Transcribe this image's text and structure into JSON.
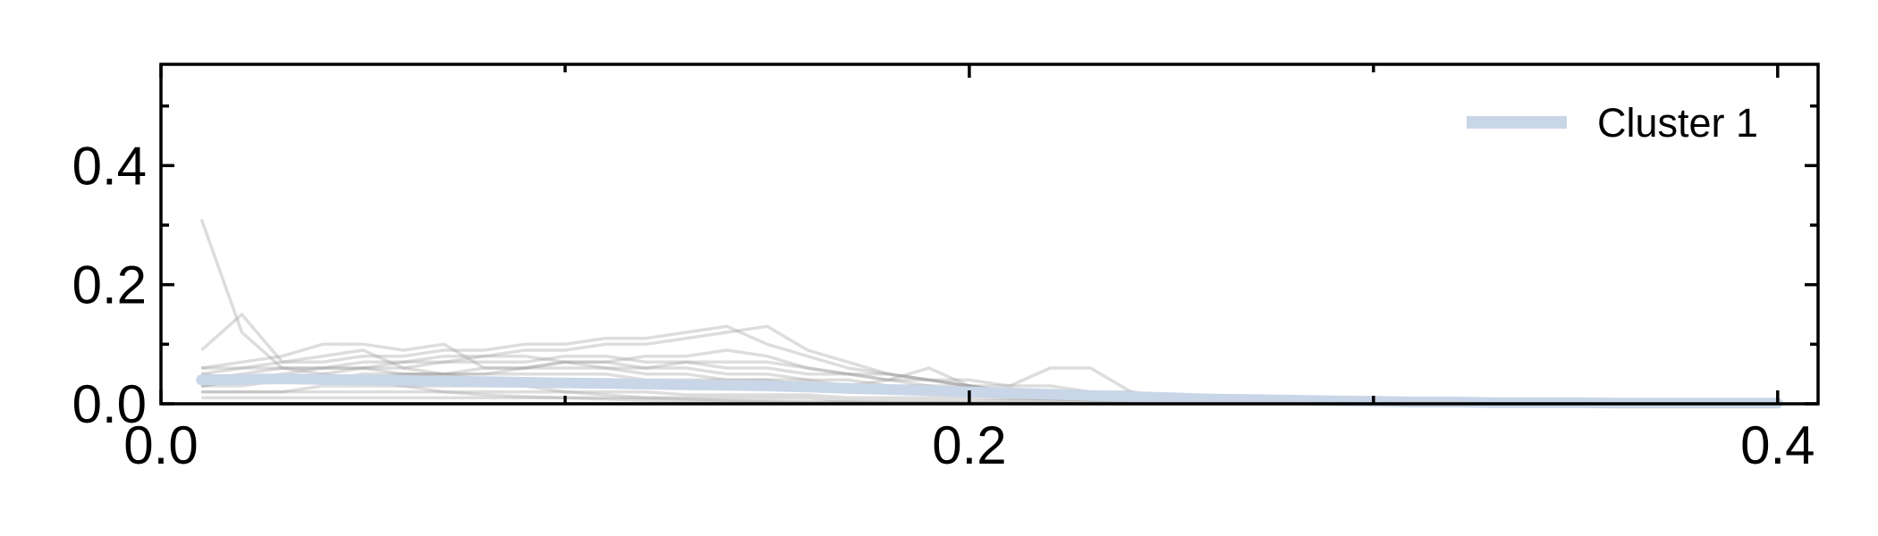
{
  "chart_data": {
    "type": "line",
    "title": "",
    "xlabel": "",
    "ylabel": "",
    "xlim": [
      0.0,
      0.41
    ],
    "ylim": [
      0.0,
      0.57
    ],
    "x_ticks": [
      0.0,
      0.2,
      0.4
    ],
    "x_tick_labels": [
      "0.0",
      "0.2",
      "0.4"
    ],
    "x_minor_ticks": [
      0.1,
      0.3
    ],
    "y_ticks": [
      0.0,
      0.2,
      0.4
    ],
    "y_tick_labels": [
      "0.0",
      "0.2",
      "0.4"
    ],
    "y_minor_ticks": [
      0.1,
      0.3,
      0.5
    ],
    "grid": false,
    "legend_position": "top-right",
    "colors": {
      "mean_line": "#c9d6e8",
      "member_lines": "#9e9e9e"
    },
    "x": [
      0.01,
      0.02,
      0.03,
      0.04,
      0.05,
      0.06,
      0.07,
      0.08,
      0.09,
      0.1,
      0.11,
      0.12,
      0.13,
      0.14,
      0.15,
      0.16,
      0.17,
      0.18,
      0.19,
      0.2,
      0.21,
      0.22,
      0.23,
      0.24,
      0.25,
      0.26,
      0.27,
      0.28,
      0.29,
      0.3,
      0.31,
      0.32,
      0.33,
      0.34,
      0.35,
      0.36,
      0.37,
      0.38,
      0.39,
      0.4
    ],
    "series": [
      {
        "name": "Cluster 1",
        "role": "mean",
        "values": [
          0.04,
          0.041,
          0.042,
          0.041,
          0.04,
          0.039,
          0.038,
          0.037,
          0.036,
          0.035,
          0.034,
          0.033,
          0.032,
          0.031,
          0.03,
          0.028,
          0.026,
          0.024,
          0.022,
          0.02,
          0.018,
          0.016,
          0.014,
          0.012,
          0.01,
          0.008,
          0.007,
          0.006,
          0.005,
          0.004,
          0.003,
          0.003,
          0.002,
          0.002,
          0.002,
          0.001,
          0.001,
          0.001,
          0.001,
          0.001
        ]
      },
      {
        "role": "member",
        "values": [
          0.31,
          0.12,
          0.06,
          0.05,
          0.04,
          0.03,
          0.02,
          0.015,
          0.012,
          0.01,
          0.008,
          0.006,
          0.005,
          0.004,
          0.003,
          0.002,
          0.002,
          0.001,
          0.001,
          0.001,
          0.001,
          0.001,
          0.0,
          0.0,
          0.0,
          0.0,
          0.0,
          0.0,
          0.0,
          0.0,
          0.0,
          0.0,
          0.0,
          0.0,
          0.0,
          0.0,
          0.0,
          0.0,
          0.0,
          0.0
        ]
      },
      {
        "role": "member",
        "values": [
          0.09,
          0.15,
          0.07,
          0.08,
          0.09,
          0.06,
          0.05,
          0.04,
          0.03,
          0.02,
          0.015,
          0.01,
          0.008,
          0.006,
          0.005,
          0.004,
          0.003,
          0.002,
          0.002,
          0.001,
          0.001,
          0.001,
          0.0,
          0.0,
          0.0,
          0.0,
          0.0,
          0.0,
          0.0,
          0.0,
          0.0,
          0.0,
          0.0,
          0.0,
          0.0,
          0.0,
          0.0,
          0.0,
          0.0,
          0.0
        ]
      },
      {
        "role": "member",
        "values": [
          0.06,
          0.07,
          0.08,
          0.1,
          0.1,
          0.09,
          0.1,
          0.06,
          0.06,
          0.07,
          0.06,
          0.05,
          0.05,
          0.04,
          0.04,
          0.03,
          0.03,
          0.02,
          0.02,
          0.015,
          0.01,
          0.008,
          0.006,
          0.004,
          0.003,
          0.002,
          0.002,
          0.001,
          0.001,
          0.0,
          0.0,
          0.0,
          0.0,
          0.0,
          0.0,
          0.0,
          0.0,
          0.0,
          0.0,
          0.0
        ]
      },
      {
        "role": "member",
        "values": [
          0.05,
          0.06,
          0.07,
          0.07,
          0.08,
          0.08,
          0.09,
          0.09,
          0.1,
          0.1,
          0.11,
          0.11,
          0.12,
          0.13,
          0.1,
          0.08,
          0.06,
          0.05,
          0.04,
          0.03,
          0.02,
          0.015,
          0.01,
          0.008,
          0.006,
          0.004,
          0.003,
          0.002,
          0.001,
          0.0,
          0.0,
          0.0,
          0.0,
          0.0,
          0.0,
          0.0,
          0.0,
          0.0,
          0.0,
          0.0
        ]
      },
      {
        "role": "member",
        "values": [
          0.04,
          0.05,
          0.06,
          0.06,
          0.07,
          0.07,
          0.08,
          0.08,
          0.09,
          0.09,
          0.1,
          0.1,
          0.11,
          0.12,
          0.13,
          0.09,
          0.07,
          0.05,
          0.04,
          0.03,
          0.02,
          0.015,
          0.01,
          0.006,
          0.004,
          0.003,
          0.002,
          0.001,
          0.0,
          0.0,
          0.0,
          0.0,
          0.0,
          0.0,
          0.0,
          0.0,
          0.0,
          0.0,
          0.0,
          0.0
        ]
      },
      {
        "role": "member",
        "values": [
          0.03,
          0.04,
          0.05,
          0.06,
          0.06,
          0.06,
          0.07,
          0.07,
          0.07,
          0.08,
          0.08,
          0.07,
          0.07,
          0.06,
          0.06,
          0.05,
          0.05,
          0.04,
          0.04,
          0.03,
          0.03,
          0.06,
          0.06,
          0.02,
          0.01,
          0.008,
          0.005,
          0.003,
          0.002,
          0.001,
          0.0,
          0.0,
          0.0,
          0.0,
          0.0,
          0.0,
          0.0,
          0.0,
          0.0,
          0.0
        ]
      },
      {
        "role": "member",
        "values": [
          0.06,
          0.06,
          0.06,
          0.06,
          0.06,
          0.05,
          0.05,
          0.05,
          0.05,
          0.05,
          0.05,
          0.04,
          0.04,
          0.04,
          0.04,
          0.04,
          0.03,
          0.04,
          0.06,
          0.03,
          0.02,
          0.015,
          0.01,
          0.008,
          0.006,
          0.004,
          0.003,
          0.002,
          0.001,
          0.001,
          0.0,
          0.0,
          0.0,
          0.0,
          0.0,
          0.0,
          0.0,
          0.0,
          0.0,
          0.0
        ]
      },
      {
        "role": "member",
        "values": [
          0.03,
          0.03,
          0.04,
          0.04,
          0.04,
          0.05,
          0.05,
          0.06,
          0.06,
          0.07,
          0.07,
          0.08,
          0.08,
          0.09,
          0.08,
          0.06,
          0.05,
          0.04,
          0.03,
          0.03,
          0.02,
          0.02,
          0.015,
          0.01,
          0.006,
          0.004,
          0.003,
          0.002,
          0.001,
          0.0,
          0.0,
          0.0,
          0.0,
          0.0,
          0.0,
          0.0,
          0.0,
          0.0,
          0.0,
          0.0
        ]
      },
      {
        "role": "member",
        "values": [
          0.02,
          0.02,
          0.02,
          0.03,
          0.03,
          0.03,
          0.03,
          0.03,
          0.03,
          0.03,
          0.03,
          0.03,
          0.03,
          0.03,
          0.03,
          0.03,
          0.03,
          0.03,
          0.02,
          0.02,
          0.02,
          0.02,
          0.02,
          0.02,
          0.01,
          0.01,
          0.01,
          0.01,
          0.008,
          0.006,
          0.005,
          0.004,
          0.003,
          0.002,
          0.002,
          0.001,
          0.001,
          0.001,
          0.001,
          0.0
        ]
      },
      {
        "role": "member",
        "values": [
          0.01,
          0.01,
          0.01,
          0.01,
          0.01,
          0.01,
          0.01,
          0.01,
          0.01,
          0.01,
          0.01,
          0.01,
          0.01,
          0.01,
          0.01,
          0.01,
          0.005,
          0.005,
          0.005,
          0.005,
          0.005,
          0.005,
          0.005,
          0.005,
          0.003,
          0.003,
          0.003,
          0.003,
          0.002,
          0.002,
          0.002,
          0.002,
          0.001,
          0.001,
          0.001,
          0.001,
          0.001,
          0.001,
          0.001,
          0.0
        ]
      },
      {
        "role": "member",
        "values": [
          0.05,
          0.04,
          0.04,
          0.05,
          0.06,
          0.07,
          0.07,
          0.08,
          0.08,
          0.07,
          0.07,
          0.06,
          0.06,
          0.05,
          0.05,
          0.04,
          0.04,
          0.03,
          0.03,
          0.02,
          0.02,
          0.02,
          0.015,
          0.01,
          0.008,
          0.006,
          0.004,
          0.003,
          0.002,
          0.001,
          0.0,
          0.0,
          0.0,
          0.0,
          0.0,
          0.0,
          0.0,
          0.0,
          0.0,
          0.0
        ]
      },
      {
        "role": "member",
        "values": [
          0.03,
          0.04,
          0.04,
          0.04,
          0.05,
          0.05,
          0.05,
          0.05,
          0.06,
          0.06,
          0.06,
          0.06,
          0.07,
          0.07,
          0.07,
          0.06,
          0.05,
          0.05,
          0.04,
          0.04,
          0.03,
          0.03,
          0.02,
          0.015,
          0.01,
          0.008,
          0.006,
          0.004,
          0.003,
          0.002,
          0.001,
          0.001,
          0.0,
          0.0,
          0.0,
          0.0,
          0.0,
          0.0,
          0.0,
          0.0
        ]
      },
      {
        "role": "member",
        "values": [
          0.02,
          0.02,
          0.02,
          0.02,
          0.02,
          0.02,
          0.02,
          0.02,
          0.02,
          0.02,
          0.02,
          0.02,
          0.015,
          0.015,
          0.015,
          0.015,
          0.01,
          0.01,
          0.01,
          0.01,
          0.008,
          0.008,
          0.006,
          0.006,
          0.005,
          0.004,
          0.003,
          0.003,
          0.002,
          0.002,
          0.001,
          0.001,
          0.001,
          0.001,
          0.0,
          0.0,
          0.0,
          0.0,
          0.0,
          0.0
        ]
      }
    ]
  }
}
